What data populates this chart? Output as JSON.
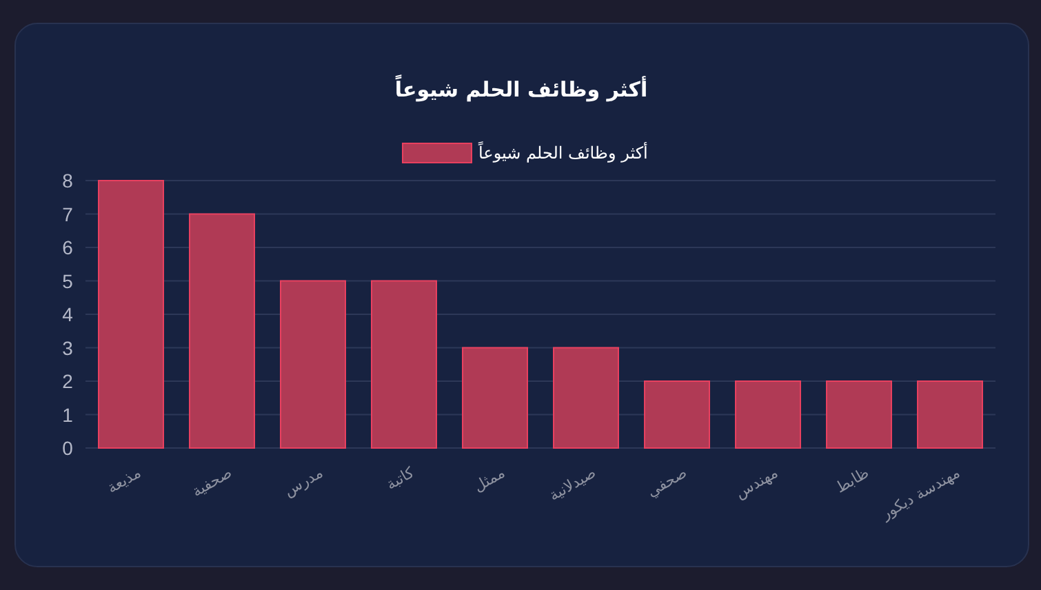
{
  "chart_data": {
    "type": "bar",
    "title": "أكثر وظائف الحلم شيوعاً",
    "categories": [
      "مذيعة",
      "صحفية",
      "مدرس",
      "كاتبة",
      "ممثل",
      "صيدلانية",
      "صحفي",
      "مهندس",
      "ظابط",
      "مهندسة ديكور"
    ],
    "series": [
      {
        "name": "أكثر وظائف الحلم شيوعاً",
        "color": "#b03a55",
        "values": [
          8,
          7,
          5,
          5,
          3,
          3,
          2,
          2,
          2,
          2
        ]
      }
    ],
    "ylim": [
      0,
      8
    ],
    "yticks": [
      0,
      1,
      2,
      3,
      4,
      5,
      6,
      7,
      8
    ],
    "grid": "y",
    "legend": "top"
  }
}
